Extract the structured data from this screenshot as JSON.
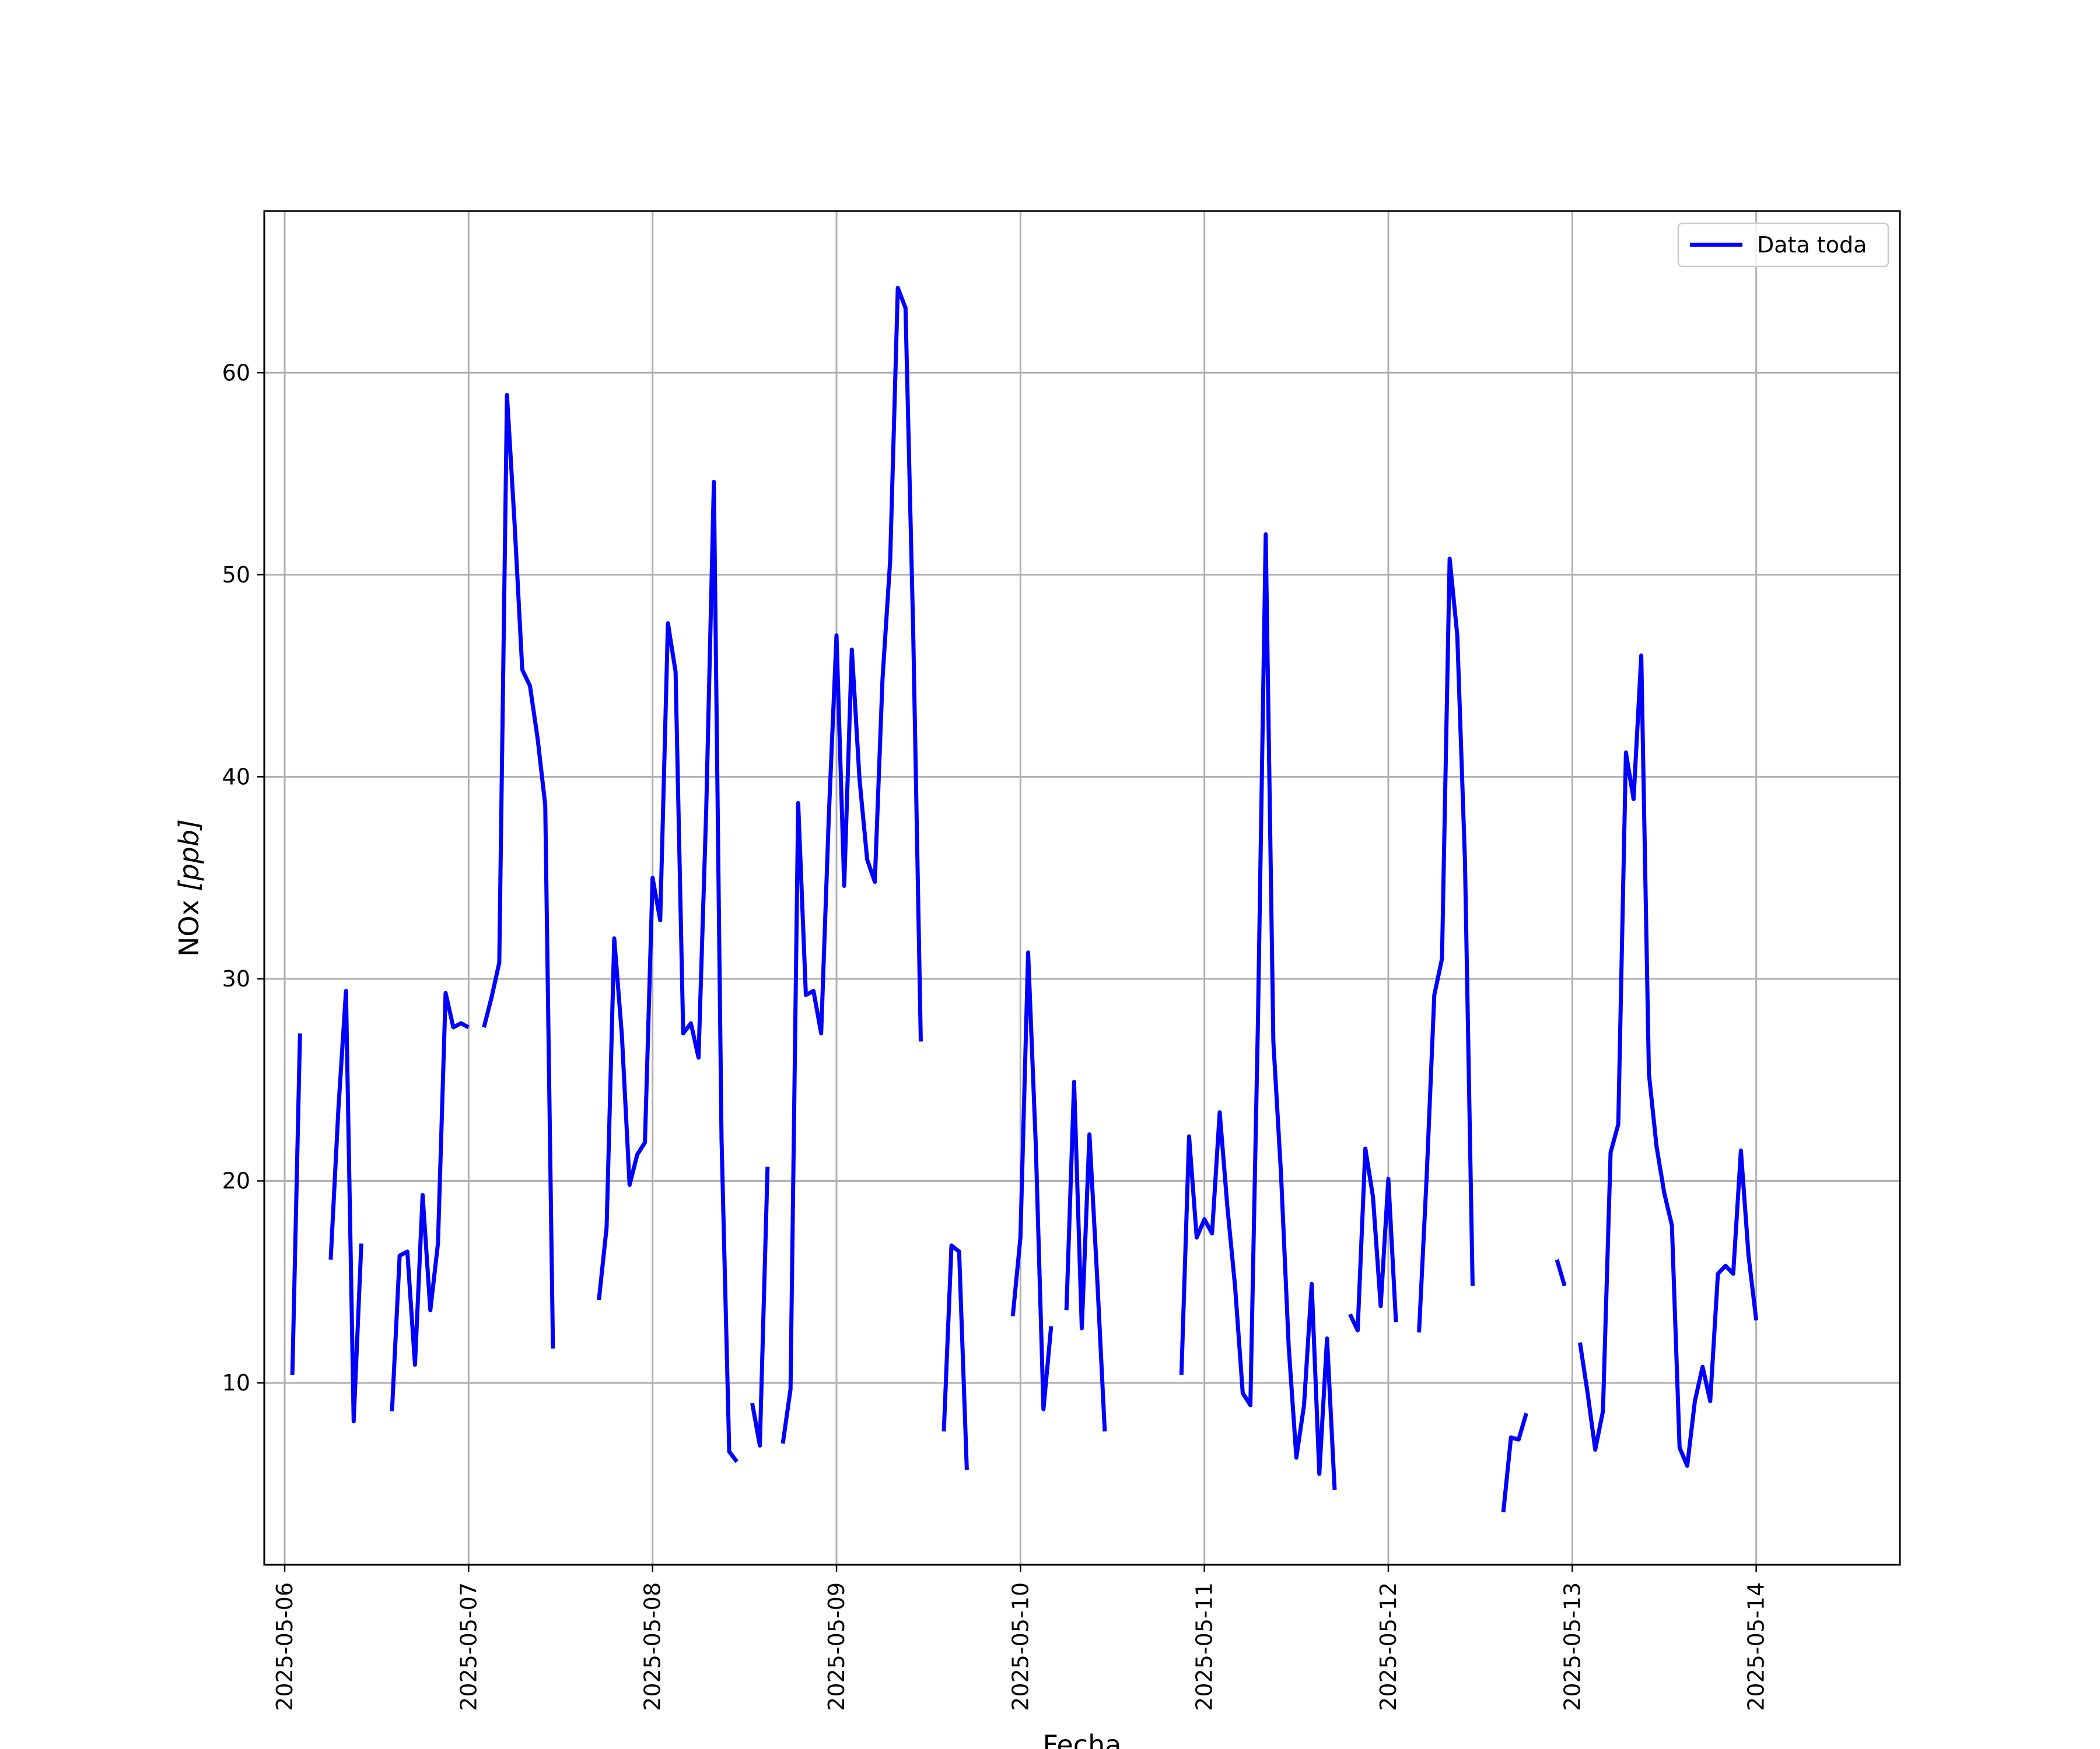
{
  "chart_data": {
    "type": "line",
    "xlabel": "Fecha",
    "ylabel_text": "NOx ",
    "ylabel_unit": "[ppb]",
    "x_ticks": [
      "2025-05-06",
      "2025-05-07",
      "2025-05-08",
      "2025-05-09",
      "2025-05-10",
      "2025-05-11",
      "2025-05-12",
      "2025-05-13",
      "2025-05-14"
    ],
    "y_ticks": [
      10,
      20,
      30,
      40,
      50,
      60
    ],
    "xlim": [
      "2025-05-05 21:20",
      "2025-05-14 18:45"
    ],
    "ylim": [
      1.0,
      68.0
    ],
    "grid": true,
    "legend_position": "top-right",
    "color": "#0000ff",
    "series": [
      {
        "name": "Data toda",
        "segments": [
          [
            [
              "2025-05-06 01:00",
              10.4
            ],
            [
              "2025-05-06 02:00",
              27.3
            ]
          ],
          [
            [
              "2025-05-06 06:00",
              16.1
            ],
            [
              "2025-05-06 07:00",
              23.5
            ],
            [
              "2025-05-06 08:00",
              29.4
            ],
            [
              "2025-05-06 09:00",
              8.1
            ],
            [
              "2025-05-06 10:00",
              16.9
            ]
          ],
          [
            [
              "2025-05-06 14:00",
              8.6
            ],
            [
              "2025-05-06 15:00",
              16.3
            ],
            [
              "2025-05-06 16:00",
              16.5
            ],
            [
              "2025-05-06 17:00",
              10.9
            ],
            [
              "2025-05-06 18:00",
              19.3
            ],
            [
              "2025-05-06 19:00",
              13.6
            ],
            [
              "2025-05-06 20:00",
              16.9
            ],
            [
              "2025-05-06 21:00",
              29.3
            ],
            [
              "2025-05-06 22:00",
              27.6
            ],
            [
              "2025-05-06 23:00",
              27.8
            ],
            [
              "2025-05-07 00:00",
              27.6
            ]
          ],
          [
            [
              "2025-05-07 02:00",
              27.6
            ],
            [
              "2025-05-07 03:00",
              29.1
            ],
            [
              "2025-05-07 04:00",
              30.8
            ],
            [
              "2025-05-07 05:00",
              58.9
            ],
            [
              "2025-05-07 06:00",
              52.5
            ],
            [
              "2025-05-07 07:00",
              45.3
            ],
            [
              "2025-05-07 08:00",
              44.5
            ],
            [
              "2025-05-07 09:00",
              41.9
            ],
            [
              "2025-05-07 10:00",
              38.6
            ],
            [
              "2025-05-07 11:00",
              11.7
            ]
          ],
          [
            [
              "2025-05-07 17:00",
              14.1
            ],
            [
              "2025-05-07 18:00",
              17.7
            ],
            [
              "2025-05-07 19:00",
              32.0
            ],
            [
              "2025-05-07 20:00",
              27.2
            ],
            [
              "2025-05-07 21:00",
              19.8
            ],
            [
              "2025-05-07 22:00",
              21.3
            ],
            [
              "2025-05-07 23:00",
              21.9
            ],
            [
              "2025-05-08 00:00",
              35.0
            ],
            [
              "2025-05-08 01:00",
              32.9
            ],
            [
              "2025-05-08 02:00",
              47.6
            ],
            [
              "2025-05-08 03:00",
              45.2
            ],
            [
              "2025-05-08 04:00",
              27.3
            ],
            [
              "2025-05-08 05:00",
              27.8
            ],
            [
              "2025-05-08 06:00",
              26.1
            ],
            [
              "2025-05-08 07:00",
              38.4
            ],
            [
              "2025-05-08 08:00",
              54.6
            ],
            [
              "2025-05-08 09:00",
              22.1
            ],
            [
              "2025-05-08 10:00",
              6.6
            ],
            [
              "2025-05-08 11:00",
              6.1
            ]
          ],
          [
            [
              "2025-05-08 13:00",
              9.0
            ],
            [
              "2025-05-08 14:00",
              6.9
            ],
            [
              "2025-05-08 15:00",
              20.7
            ]
          ],
          [
            [
              "2025-05-08 17:00",
              7.0
            ],
            [
              "2025-05-08 18:00",
              9.7
            ],
            [
              "2025-05-08 19:00",
              38.7
            ],
            [
              "2025-05-08 20:00",
              29.2
            ],
            [
              "2025-05-08 21:00",
              29.4
            ],
            [
              "2025-05-08 22:00",
              27.3
            ],
            [
              "2025-05-08 23:00",
              38.1
            ],
            [
              "2025-05-09 00:00",
              47.0
            ],
            [
              "2025-05-09 01:00",
              34.6
            ],
            [
              "2025-05-09 02:00",
              46.3
            ],
            [
              "2025-05-09 03:00",
              39.9
            ],
            [
              "2025-05-09 04:00",
              35.9
            ],
            [
              "2025-05-09 05:00",
              34.8
            ],
            [
              "2025-05-09 06:00",
              44.8
            ],
            [
              "2025-05-09 07:00",
              50.7
            ],
            [
              "2025-05-09 08:00",
              64.2
            ],
            [
              "2025-05-09 09:00",
              63.2
            ],
            [
              "2025-05-09 10:00",
              47.3
            ],
            [
              "2025-05-09 11:00",
              26.9
            ]
          ],
          [
            [
              "2025-05-09 14:00",
              7.6
            ],
            [
              "2025-05-09 15:00",
              16.8
            ],
            [
              "2025-05-09 16:00",
              16.5
            ],
            [
              "2025-05-09 17:00",
              5.7
            ]
          ],
          [
            [
              "2025-05-09 23:00",
              13.3
            ],
            [
              "2025-05-10 00:00",
              17.2
            ],
            [
              "2025-05-10 01:00",
              31.3
            ],
            [
              "2025-05-10 02:00",
              21.8
            ],
            [
              "2025-05-10 03:00",
              8.7
            ],
            [
              "2025-05-10 04:00",
              12.8
            ]
          ],
          [
            [
              "2025-05-10 06:00",
              13.6
            ],
            [
              "2025-05-10 07:00",
              24.9
            ],
            [
              "2025-05-10 08:00",
              12.7
            ],
            [
              "2025-05-10 09:00",
              22.3
            ],
            [
              "2025-05-10 10:00",
              15.3
            ],
            [
              "2025-05-10 11:00",
              7.6
            ]
          ],
          [
            [
              "2025-05-10 21:00",
              10.4
            ],
            [
              "2025-05-10 22:00",
              22.2
            ],
            [
              "2025-05-10 23:00",
              17.2
            ],
            [
              "2025-05-11 00:00",
              18.1
            ],
            [
              "2025-05-11 01:00",
              17.4
            ],
            [
              "2025-05-11 02:00",
              23.4
            ],
            [
              "2025-05-11 03:00",
              18.7
            ],
            [
              "2025-05-11 04:00",
              14.8
            ],
            [
              "2025-05-11 05:00",
              9.5
            ],
            [
              "2025-05-11 06:00",
              8.9
            ],
            [
              "2025-05-11 07:00",
              28.1
            ],
            [
              "2025-05-11 08:00",
              52.0
            ],
            [
              "2025-05-11 09:00",
              26.9
            ],
            [
              "2025-05-11 10:00",
              20.3
            ],
            [
              "2025-05-11 11:00",
              11.8
            ],
            [
              "2025-05-11 12:00",
              6.3
            ],
            [
              "2025-05-11 13:00",
              8.9
            ],
            [
              "2025-05-11 14:00",
              14.9
            ],
            [
              "2025-05-11 15:00",
              5.5
            ],
            [
              "2025-05-11 16:00",
              12.2
            ],
            [
              "2025-05-11 17:00",
              4.7
            ]
          ],
          [
            [
              "2025-05-11 19:00",
              13.4
            ],
            [
              "2025-05-11 20:00",
              12.6
            ],
            [
              "2025-05-11 21:00",
              21.6
            ],
            [
              "2025-05-11 22:00",
              19.2
            ],
            [
              "2025-05-11 23:00",
              13.8
            ],
            [
              "2025-05-12 00:00",
              20.1
            ],
            [
              "2025-05-12 01:00",
              13.0
            ]
          ],
          [
            [
              "2025-05-12 04:00",
              12.5
            ],
            [
              "2025-05-12 05:00",
              20.2
            ],
            [
              "2025-05-12 06:00",
              29.2
            ],
            [
              "2025-05-12 07:00",
              31.0
            ],
            [
              "2025-05-12 08:00",
              50.8
            ],
            [
              "2025-05-12 09:00",
              47.0
            ],
            [
              "2025-05-12 10:00",
              35.8
            ],
            [
              "2025-05-12 11:00",
              14.8
            ]
          ],
          [
            [
              "2025-05-12 15:00",
              3.6
            ],
            [
              "2025-05-12 16:00",
              7.3
            ],
            [
              "2025-05-12 17:00",
              7.2
            ],
            [
              "2025-05-12 18:00",
              8.5
            ]
          ],
          [
            [
              "2025-05-12 22:00",
              16.1
            ],
            [
              "2025-05-12 23:00",
              14.8
            ]
          ],
          [
            [
              "2025-05-13 01:00",
              12.0
            ],
            [
              "2025-05-13 02:00",
              9.5
            ],
            [
              "2025-05-13 03:00",
              6.7
            ],
            [
              "2025-05-13 04:00",
              8.6
            ],
            [
              "2025-05-13 05:00",
              21.4
            ],
            [
              "2025-05-13 06:00",
              22.8
            ],
            [
              "2025-05-13 07:00",
              41.2
            ],
            [
              "2025-05-13 08:00",
              38.9
            ],
            [
              "2025-05-13 09:00",
              46.0
            ],
            [
              "2025-05-13 10:00",
              25.3
            ],
            [
              "2025-05-13 11:00",
              21.7
            ],
            [
              "2025-05-13 12:00",
              19.4
            ],
            [
              "2025-05-13 13:00",
              17.8
            ],
            [
              "2025-05-13 14:00",
              6.8
            ],
            [
              "2025-05-13 15:00",
              5.9
            ],
            [
              "2025-05-13 16:00",
              9.1
            ],
            [
              "2025-05-13 17:00",
              10.8
            ],
            [
              "2025-05-13 18:00",
              9.1
            ],
            [
              "2025-05-13 19:00",
              15.4
            ],
            [
              "2025-05-13 20:00",
              15.8
            ],
            [
              "2025-05-13 21:00",
              15.4
            ],
            [
              "2025-05-13 22:00",
              21.5
            ],
            [
              "2025-05-13 23:00",
              16.3
            ],
            [
              "2025-05-14 00:00",
              13.1
            ]
          ]
        ]
      }
    ]
  }
}
